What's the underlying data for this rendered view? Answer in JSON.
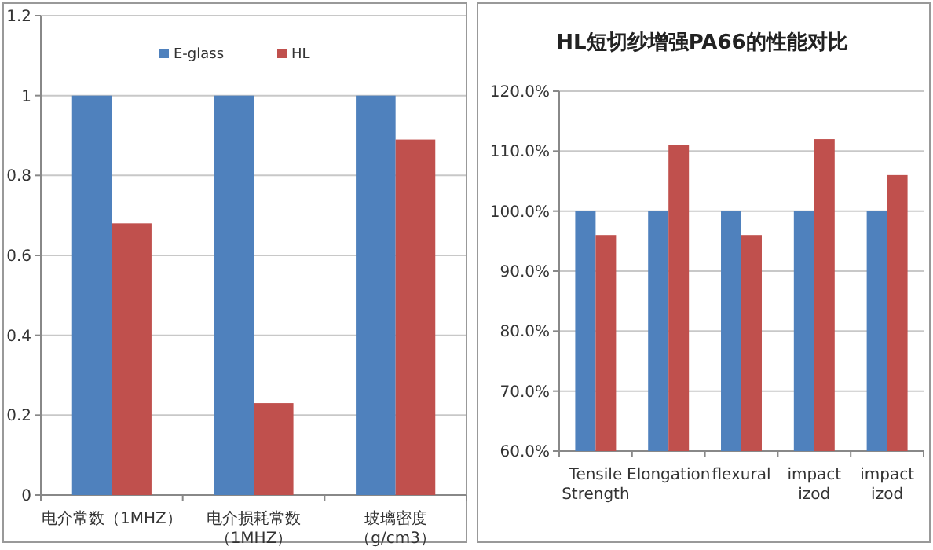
{
  "chart_data": [
    {
      "type": "bar",
      "categories": [
        "电介常数（1MHZ）",
        "电介损耗常数（1MHZ）",
        "玻璃密度（g/cm3）"
      ],
      "series": [
        {
          "name": "E-glass",
          "color": "#4f81bd",
          "values": [
            1,
            1,
            1
          ]
        },
        {
          "name": "HL",
          "color": "#c0504d",
          "values": [
            0.68,
            0.23,
            0.89
          ]
        }
      ],
      "ylim": [
        0,
        1.2
      ],
      "yticks": [
        0,
        0.2,
        0.4,
        0.6,
        0.8,
        1,
        1.2
      ],
      "grid": "y",
      "legend": "top"
    },
    {
      "type": "bar",
      "title": "HL短切纱增强PA66的性能对比",
      "categories": [
        "Tensile Strength",
        "Elongation",
        "flexural",
        "impact izod",
        "impact izod"
      ],
      "series": [
        {
          "color": "#4f81bd",
          "values": [
            100,
            100,
            100,
            100,
            100
          ]
        },
        {
          "color": "#c0504d",
          "values": [
            96,
            111,
            96,
            112,
            106
          ]
        }
      ],
      "ylim": [
        60,
        120
      ],
      "yticks": [
        {
          "value": 60,
          "label": "60.0%"
        },
        {
          "value": 70,
          "label": "70.0%"
        },
        {
          "value": 80,
          "label": "80.0%"
        },
        {
          "value": 90,
          "label": "90.0%"
        },
        {
          "value": 100,
          "label": "100.0%"
        },
        {
          "value": 110,
          "label": "110.0%"
        },
        {
          "value": 120,
          "label": "120.0%"
        }
      ],
      "grid": "y"
    }
  ]
}
